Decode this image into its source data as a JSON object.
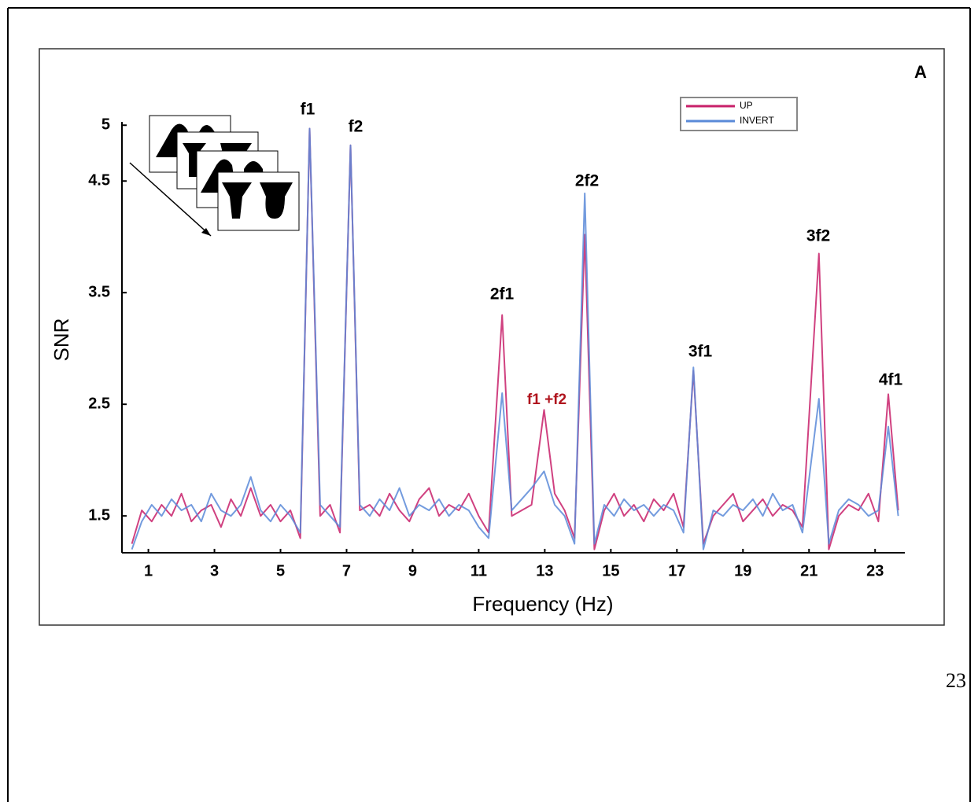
{
  "page_number": "23",
  "chart_data": {
    "type": "line",
    "panel_label": "A",
    "y_label": "SNR",
    "x_label": "Frequency (Hz)",
    "annotations": [
      "f1",
      "f2",
      "2f1",
      "f1 +f2",
      "2f2",
      "3f1",
      "3f2",
      "4f1"
    ],
    "x": [
      0.5,
      0.8,
      1.1,
      1.4,
      1.7,
      2.0,
      2.3,
      2.6,
      2.9,
      3.2,
      3.5,
      3.8,
      4.1,
      4.4,
      4.7,
      5.0,
      5.3,
      5.6,
      5.88,
      6.2,
      6.5,
      6.8,
      7.12,
      7.4,
      7.7,
      8.0,
      8.3,
      8.6,
      8.9,
      9.2,
      9.5,
      9.8,
      10.1,
      10.4,
      10.7,
      11.0,
      11.3,
      11.71,
      12.0,
      12.3,
      12.6,
      12.98,
      13.3,
      13.6,
      13.9,
      14.21,
      14.5,
      14.8,
      15.1,
      15.4,
      15.7,
      16.0,
      16.3,
      16.6,
      16.9,
      17.2,
      17.5,
      17.8,
      18.1,
      18.4,
      18.7,
      19.0,
      19.3,
      19.6,
      19.9,
      20.2,
      20.5,
      20.8,
      21.3,
      21.6,
      21.9,
      22.2,
      22.5,
      22.8,
      23.1,
      23.4,
      23.7
    ],
    "series": [
      {
        "name": "UP",
        "color": "#c8206a",
        "values": [
          1.25,
          1.55,
          1.45,
          1.6,
          1.5,
          1.7,
          1.45,
          1.55,
          1.6,
          1.4,
          1.65,
          1.5,
          1.75,
          1.5,
          1.6,
          1.45,
          1.55,
          1.3,
          4.97,
          1.5,
          1.6,
          1.35,
          4.82,
          1.55,
          1.6,
          1.5,
          1.7,
          1.55,
          1.45,
          1.65,
          1.75,
          1.5,
          1.6,
          1.55,
          1.7,
          1.5,
          1.35,
          3.3,
          1.5,
          1.55,
          1.6,
          2.45,
          1.7,
          1.55,
          1.3,
          4.02,
          1.2,
          1.55,
          1.7,
          1.5,
          1.6,
          1.45,
          1.65,
          1.55,
          1.7,
          1.4,
          2.8,
          1.25,
          1.5,
          1.6,
          1.7,
          1.45,
          1.55,
          1.65,
          1.5,
          1.6,
          1.55,
          1.4,
          3.85,
          1.2,
          1.5,
          1.6,
          1.55,
          1.7,
          1.45,
          2.59,
          1.55
        ]
      },
      {
        "name": "INVERT",
        "color": "#5a8ad8",
        "values": [
          1.2,
          1.45,
          1.6,
          1.5,
          1.65,
          1.55,
          1.6,
          1.45,
          1.7,
          1.55,
          1.5,
          1.6,
          1.85,
          1.55,
          1.45,
          1.6,
          1.5,
          1.35,
          4.97,
          1.6,
          1.5,
          1.4,
          4.82,
          1.6,
          1.5,
          1.65,
          1.55,
          1.75,
          1.5,
          1.6,
          1.55,
          1.65,
          1.5,
          1.6,
          1.55,
          1.4,
          1.3,
          2.6,
          1.55,
          1.65,
          1.75,
          1.9,
          1.6,
          1.5,
          1.25,
          4.39,
          1.25,
          1.6,
          1.5,
          1.65,
          1.55,
          1.6,
          1.5,
          1.6,
          1.55,
          1.35,
          2.83,
          1.2,
          1.55,
          1.5,
          1.6,
          1.55,
          1.65,
          1.5,
          1.7,
          1.55,
          1.6,
          1.35,
          2.55,
          1.25,
          1.55,
          1.65,
          1.6,
          1.5,
          1.55,
          2.3,
          1.5
        ]
      }
    ],
    "xlim": [
      0.2,
      23.9
    ],
    "xticks": [
      1,
      3,
      5,
      7,
      9,
      11,
      13,
      15,
      17,
      19,
      21,
      23
    ],
    "ylim": [
      1.17,
      5.03
    ],
    "yticks": [
      1.5,
      2.5,
      3.5,
      4.5,
      5
    ]
  }
}
